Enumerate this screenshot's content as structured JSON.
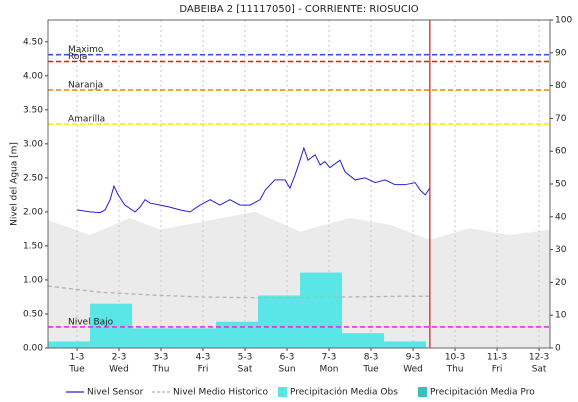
{
  "chart_data": {
    "type": "line",
    "title": "DABEIBA 2   [11117050] - CORRIENTE: RIOSUCIO",
    "y_label": "Nivel del Agua [m]",
    "xlim": [
      0.31,
      12.26
    ],
    "xticks": [
      {
        "value": 1,
        "label": "1-3"
      },
      {
        "value": 2,
        "label": "2-3"
      },
      {
        "value": 3,
        "label": "3-3"
      },
      {
        "value": 4,
        "label": "4-3"
      },
      {
        "value": 5,
        "label": "5-3"
      },
      {
        "value": 6,
        "label": "6-3"
      },
      {
        "value": 7,
        "label": "7-3"
      },
      {
        "value": 8,
        "label": "8-3"
      },
      {
        "value": 9,
        "label": "9-3"
      },
      {
        "value": 10,
        "label": "10-3"
      },
      {
        "value": 11,
        "label": "11-3"
      },
      {
        "value": 12,
        "label": "12-3"
      }
    ],
    "xtick_weekdays": [
      "Tue",
      "Wed",
      "Thu",
      "Fri",
      "Sat",
      "Sun",
      "Mon",
      "Tue",
      "Wed",
      "Thu",
      "Fri",
      "Sat"
    ],
    "ylim": [
      0,
      4.82
    ],
    "yticks": [
      {
        "value": 0,
        "label": "0.00"
      },
      {
        "value": 0.5,
        "label": "0.50"
      },
      {
        "value": 1,
        "label": "1.00"
      },
      {
        "value": 1.5,
        "label": "1.50"
      },
      {
        "value": 2,
        "label": "2.00"
      },
      {
        "value": 2.5,
        "label": "2.50"
      },
      {
        "value": 3,
        "label": "3.00"
      },
      {
        "value": 3.5,
        "label": "3.50"
      },
      {
        "value": 4,
        "label": "4.00"
      },
      {
        "value": 4.5,
        "label": "4.50"
      }
    ],
    "y2lim": [
      0,
      100
    ],
    "y2ticks": [
      0,
      10,
      20,
      30,
      40,
      50,
      60,
      70,
      80,
      90,
      100
    ],
    "grid": true,
    "now_marker": 9.4,
    "historic_range": {
      "color": "#ebebeb",
      "x": [
        0.31,
        1.31,
        2.26,
        2.98,
        3.93,
        5.24,
        6.31,
        7.5,
        8.45,
        9.4,
        10.36,
        11.31,
        12.26
      ],
      "values": [
        1.88,
        1.66,
        1.91,
        1.74,
        1.85,
        2.0,
        1.71,
        1.91,
        1.81,
        1.59,
        1.76,
        1.66,
        1.74
      ]
    },
    "thresholds": [
      {
        "label": "Maximo",
        "value": 4.31,
        "color": "#3355cc"
      },
      {
        "label": "Roja",
        "value": 4.21,
        "color": "#e8141e"
      },
      {
        "label": "Naranja",
        "value": 3.79,
        "color": "#f08c1e"
      },
      {
        "label": "Amarilla",
        "value": 3.29,
        "color": "#f0f000"
      },
      {
        "label": "Nivel Bajo",
        "value": 0.31,
        "color": "#e632e6"
      }
    ],
    "series": [
      {
        "name": "Nivel Sensor",
        "color": "#2424c8",
        "x": [
          1.0,
          1.31,
          1.55,
          1.67,
          1.79,
          1.88,
          1.98,
          2.14,
          2.38,
          2.5,
          2.62,
          2.74,
          2.98,
          3.21,
          3.45,
          3.69,
          3.93,
          4.17,
          4.4,
          4.64,
          4.88,
          5.12,
          5.36,
          5.48,
          5.71,
          5.95,
          6.07,
          6.19,
          6.31,
          6.4,
          6.5,
          6.67,
          6.79,
          6.9,
          7.02,
          7.26,
          7.38,
          7.62,
          7.86,
          8.1,
          8.33,
          8.57,
          8.81,
          9.05,
          9.17,
          9.29,
          9.4
        ],
        "values": [
          2.03,
          2.0,
          1.99,
          2.03,
          2.18,
          2.38,
          2.25,
          2.1,
          2.0,
          2.07,
          2.18,
          2.13,
          2.1,
          2.07,
          2.03,
          2.0,
          2.1,
          2.18,
          2.1,
          2.18,
          2.1,
          2.1,
          2.18,
          2.32,
          2.47,
          2.47,
          2.35,
          2.54,
          2.76,
          2.94,
          2.76,
          2.84,
          2.69,
          2.74,
          2.65,
          2.76,
          2.59,
          2.47,
          2.5,
          2.43,
          2.47,
          2.4,
          2.4,
          2.43,
          2.32,
          2.25,
          2.35
        ]
      },
      {
        "name": "Nivel Medio Historico",
        "color": "#b4b4b4",
        "x": [
          0.31,
          1.55,
          2.74,
          3.93,
          5.12,
          6.31,
          7.5,
          8.69,
          9.4
        ],
        "values": [
          0.91,
          0.82,
          0.78,
          0.75,
          0.74,
          0.74,
          0.75,
          0.76,
          0.76
        ]
      },
      {
        "name": "Precipitación Media Obs",
        "color": "#5ae6e6",
        "axis": "y2",
        "bins": [
          0.31,
          1.31,
          2.31,
          3.31,
          4.31,
          5.31,
          6.31,
          7.31,
          8.31,
          9.31
        ],
        "values": [
          2,
          13.5,
          6,
          6,
          8,
          16,
          23,
          4.5,
          2
        ]
      },
      {
        "name": "Precipitación Media Pro",
        "color": "#3cbebe",
        "axis": "y2",
        "bins": [],
        "values": []
      }
    ]
  }
}
